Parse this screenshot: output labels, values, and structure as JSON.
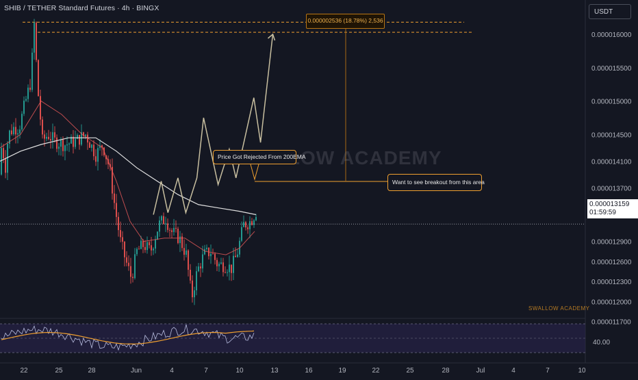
{
  "title": "SHIB / TETHER Standard Futures · 4h · BINGX",
  "currency": "USDT",
  "current_price": "0.000013159",
  "countdown": "01:59:59",
  "watermark": "SWALLOW ACADEMY",
  "brand": "SWALLOW ACADEMY",
  "annotations": {
    "rejected": "Price Got Rejected From 200EMA",
    "breakout": "Want to see breakout from this area",
    "measure": "0.000002536 (18.78%) 2,536"
  },
  "colors": {
    "background": "#141722",
    "candle_up": "#26a69a",
    "candle_down": "#ef5350",
    "ema_slow": "#e0e0e0",
    "ema_fast": "#e85a5a",
    "projection": "#c8bfa0",
    "accent": "#f0a030",
    "rsi_line": "#b8bde0",
    "rsi_ma": "#f0a030"
  },
  "chart_data": {
    "type": "candlestick",
    "y_axis": {
      "ticks": [
        {
          "label": "0.000016000",
          "value": 1.6e-05
        },
        {
          "label": "0.000015500",
          "value": 1.55e-05
        },
        {
          "label": "0.000015000",
          "value": 1.5e-05
        },
        {
          "label": "0.000014500",
          "value": 1.45e-05
        },
        {
          "label": "0.000014100",
          "value": 1.41e-05
        },
        {
          "label": "0.000013700",
          "value": 1.37e-05
        },
        {
          "label": "0.000013300",
          "value": 1.33e-05
        },
        {
          "label": "0.000012900",
          "value": 1.29e-05
        },
        {
          "label": "0.000012600",
          "value": 1.26e-05
        },
        {
          "label": "0.000012300",
          "value": 1.23e-05
        },
        {
          "label": "0.000012000",
          "value": 1.2e-05
        },
        {
          "label": "0.000011700",
          "value": 1.17e-05
        }
      ]
    },
    "x_axis": {
      "ticks": [
        "22",
        "25",
        "28",
        "Jun",
        "4",
        "7",
        "10",
        "13",
        "16",
        "19",
        "22",
        "25",
        "28",
        "Jul",
        "4",
        "7",
        "10"
      ]
    },
    "levels": [
      1.618e-05,
      1.603e-05
    ],
    "projection_path": [
      [
        11.6,
        13300
      ],
      [
        12.3,
        13800
      ],
      [
        12.9,
        13330
      ],
      [
        13.8,
        13850
      ],
      [
        14.5,
        13330
      ],
      [
        15.5,
        13850
      ],
      [
        16.1,
        14750
      ],
      [
        17.4,
        13750
      ],
      [
        18.4,
        14280
      ],
      [
        19.0,
        13850
      ],
      [
        20.6,
        15050
      ],
      [
        21.2,
        14380
      ],
      [
        22.3,
        16000
      ]
    ],
    "projection_scale": "1e-9",
    "rsi": {
      "tick": "40.00",
      "band": [
        30,
        70
      ]
    }
  }
}
